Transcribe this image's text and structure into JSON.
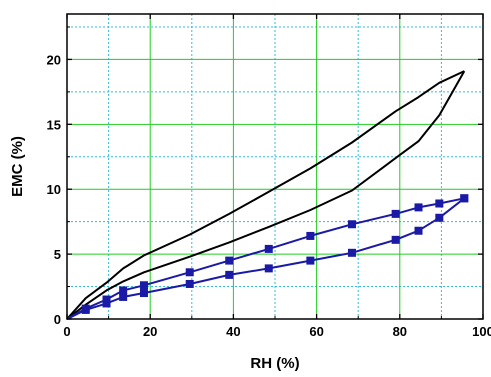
{
  "chart_data": {
    "type": "line",
    "xlabel": "RH (%)",
    "ylabel": "EMC (%)",
    "xlim": [
      0,
      100
    ],
    "ylim": [
      0,
      23.5
    ],
    "xticks": [
      0,
      20,
      40,
      60,
      80,
      100
    ],
    "yticks": [
      0,
      5,
      10,
      15,
      20
    ],
    "grid": true,
    "grid_color": "#22cc22",
    "minor_grid_color": "#33bbdd",
    "series": [
      {
        "color": "#000000",
        "marker": "none",
        "x": [
          0,
          4.5,
          9.5,
          13.5,
          18.5,
          29.5,
          39,
          48.5,
          58.5,
          68.5,
          79,
          84.5,
          89.5,
          95.5
        ],
        "y": [
          0,
          1.6,
          2.8,
          3.9,
          4.9,
          6.5,
          8.1,
          9.8,
          11.6,
          13.6,
          16.0,
          17.1,
          18.2,
          19.1
        ]
      },
      {
        "color": "#000000",
        "marker": "none",
        "x": [
          0,
          4.5,
          9.5,
          13.5,
          18.5,
          29.5,
          39,
          48.5,
          58.5,
          68.5,
          79,
          84.5,
          89.5,
          95.5
        ],
        "y": [
          0,
          1.1,
          2.2,
          2.9,
          3.6,
          4.8,
          5.9,
          7.1,
          8.4,
          9.9,
          12.4,
          13.7,
          15.7,
          19.1
        ]
      },
      {
        "color": "#1a1aa6",
        "marker": "square",
        "x": [
          0,
          4.5,
          9.5,
          13.5,
          18.5,
          29.5,
          39,
          48.5,
          58.5,
          68.5,
          79,
          84.5,
          89.5,
          95.5
        ],
        "y": [
          0,
          0.8,
          1.5,
          2.2,
          2.6,
          3.6,
          4.5,
          5.4,
          6.4,
          7.3,
          8.1,
          8.6,
          8.9,
          9.3
        ]
      },
      {
        "color": "#1a1aa6",
        "marker": "square",
        "x": [
          0,
          4.5,
          9.5,
          13.5,
          18.5,
          29.5,
          39,
          48.5,
          58.5,
          68.5,
          79,
          84.5,
          89.5,
          95.5
        ],
        "y": [
          0,
          0.7,
          1.2,
          1.7,
          2.0,
          2.7,
          3.4,
          3.9,
          4.5,
          5.1,
          6.1,
          6.8,
          7.8,
          9.3
        ]
      }
    ]
  }
}
